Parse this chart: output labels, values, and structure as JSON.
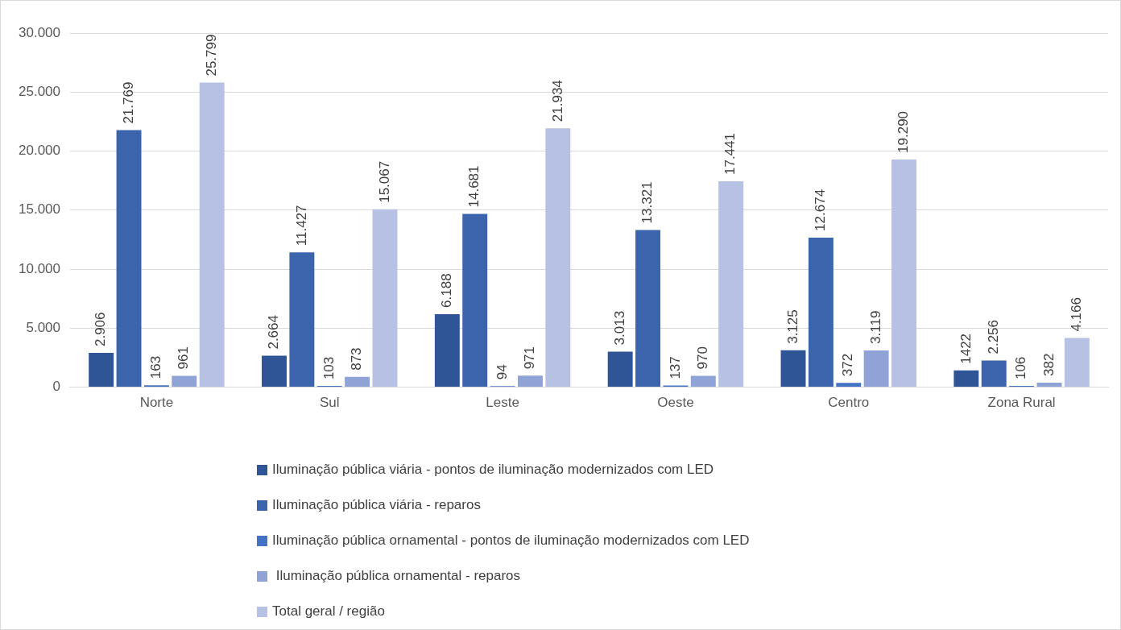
{
  "chart_data": {
    "type": "bar",
    "categories": [
      "Norte",
      "Sul",
      "Leste",
      "Oeste",
      "Centro",
      "Zona Rural"
    ],
    "series": [
      {
        "name": "Iluminação pública viária - pontos de iluminação modernizados com LED",
        "color": "#2f5597",
        "values": [
          2906,
          2664,
          6188,
          3013,
          3125,
          1422
        ],
        "value_labels": [
          "2.906",
          "2.664",
          "6.188",
          "3.013",
          "3.125",
          "1422"
        ]
      },
      {
        "name": "Iluminação pública viária - reparos",
        "color": "#3b64ad",
        "values": [
          21769,
          11427,
          14681,
          13321,
          12674,
          2256
        ],
        "value_labels": [
          "21.769",
          "11.427",
          "14.681",
          "13.321",
          "12.674",
          "2.256"
        ]
      },
      {
        "name": "Iluminação pública ornamental - pontos de iluminação modernizados com LED",
        "color": "#4472c4",
        "values": [
          163,
          103,
          94,
          137,
          372,
          106
        ],
        "value_labels": [
          "163",
          "103",
          "94",
          "137",
          "372",
          "106"
        ]
      },
      {
        "name": " Iluminação pública ornamental - reparos",
        "color": "#8fa3d6",
        "values": [
          961,
          873,
          971,
          970,
          3119,
          382
        ],
        "value_labels": [
          "961",
          "873",
          "971",
          "970",
          "3.119",
          "382"
        ]
      },
      {
        "name": "Total geral / região",
        "color": "#b7c1e3",
        "values": [
          25799,
          15067,
          21934,
          17441,
          19290,
          4166
        ],
        "value_labels": [
          "25.799",
          "15.067",
          "21.934",
          "17.441",
          "19.290",
          "4.166"
        ]
      }
    ],
    "ylim": [
      0,
      30000
    ],
    "yticks": [
      {
        "value": 0,
        "label": "0"
      },
      {
        "value": 5000,
        "label": "5.000"
      },
      {
        "value": 10000,
        "label": "10.000"
      },
      {
        "value": 15000,
        "label": "15.000"
      },
      {
        "value": 20000,
        "label": "20.000"
      },
      {
        "value": 25000,
        "label": "25.000"
      },
      {
        "value": 30000,
        "label": "30.000"
      }
    ],
    "grid": "y",
    "legend": "bottom"
  }
}
